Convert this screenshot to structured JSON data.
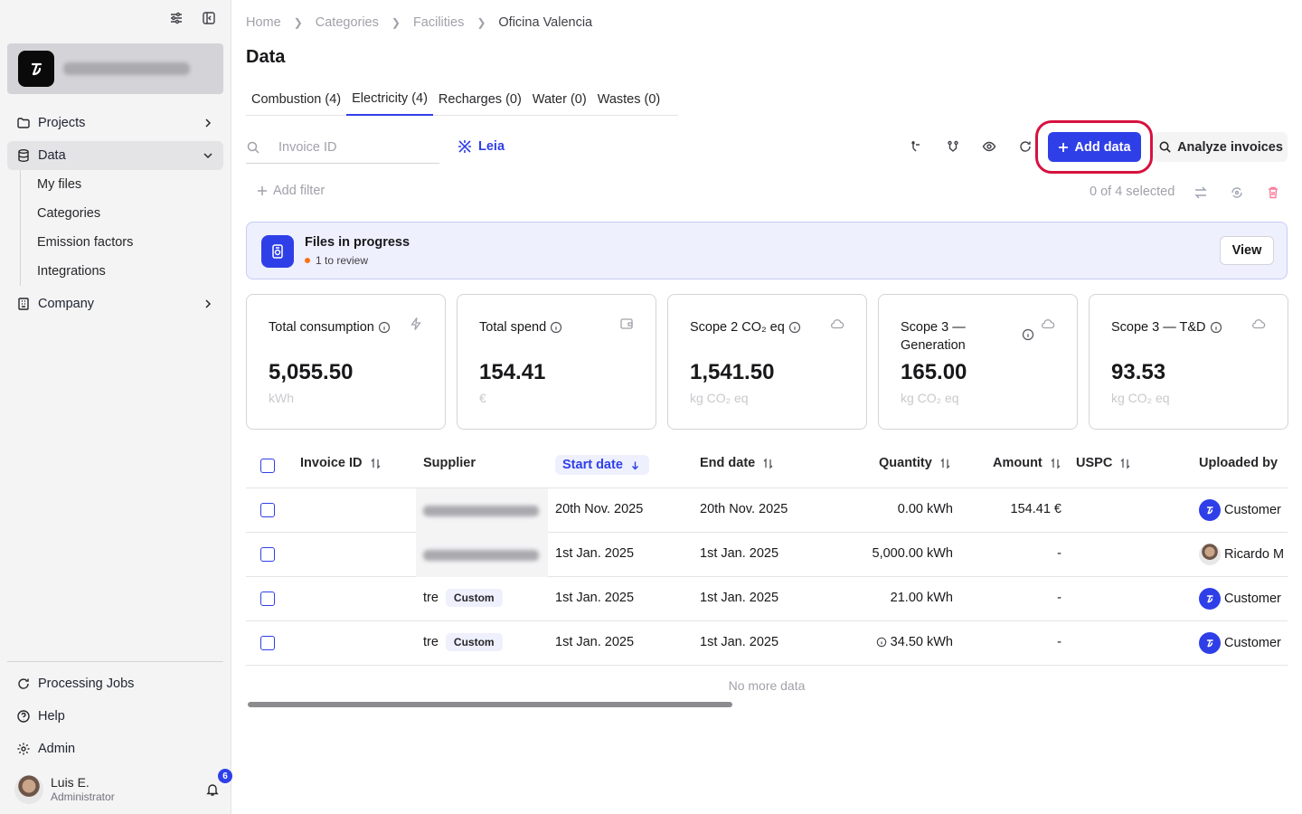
{
  "sidebar": {
    "nav": {
      "projects": "Projects",
      "data": "Data",
      "company": "Company"
    },
    "data_sub": [
      "My files",
      "Categories",
      "Emission factors",
      "Integrations"
    ],
    "bottom": {
      "processing_jobs": "Processing Jobs",
      "help": "Help",
      "admin": "Admin"
    },
    "user": {
      "name": "Luis E.",
      "role": "Administrator",
      "notifications": "6"
    }
  },
  "breadcrumb": [
    "Home",
    "Categories",
    "Facilities",
    "Oficina Valencia"
  ],
  "page_title": "Data",
  "tabs": [
    "Combustion (4)",
    "Electricity (4)",
    "Recharges (0)",
    "Water (0)",
    "Wastes (0)"
  ],
  "active_tab": "Electricity (4)",
  "search": {
    "placeholder": "Invoice ID"
  },
  "leia_label": "Leia",
  "buttons": {
    "add_data": "Add data",
    "analyze_invoices": "Analyze invoices",
    "add_filter": "Add filter"
  },
  "selection": "0 of 4 selected",
  "progress": {
    "title": "Files in progress",
    "subtitle": "1 to review",
    "view": "View"
  },
  "cards": [
    {
      "title": "Total consumption",
      "value": "5,055.50",
      "unit": "kWh",
      "icon": "bolt-icon"
    },
    {
      "title": "Total spend",
      "value": "154.41",
      "unit": "€",
      "icon": "wallet-icon"
    },
    {
      "title": "Scope 2 CO₂ eq",
      "value": "1,541.50",
      "unit": "kg CO₂ eq",
      "icon": "cloud-icon"
    },
    {
      "title": "Scope 3 — Generation",
      "value": "165.00",
      "unit": "kg CO₂ eq",
      "icon": "cloud-icon"
    },
    {
      "title": "Scope 3 — T&D",
      "value": "93.53",
      "unit": "kg CO₂ eq",
      "icon": "cloud-icon"
    }
  ],
  "table": {
    "headers": {
      "invoice_id": "Invoice ID",
      "supplier": "Supplier",
      "start_date": "Start date",
      "end_date": "End date",
      "quantity": "Quantity",
      "amount": "Amount",
      "uspc": "USPC",
      "uploaded_by": "Uploaded by"
    },
    "rows": [
      {
        "supplier": "",
        "tag": "",
        "start": "20th Nov. 2025",
        "end": "20th Nov. 2025",
        "quantity": "0.00 kWh",
        "amount": "154.41 €",
        "uploaded_by": "Customer"
      },
      {
        "supplier": "",
        "tag": "",
        "start": "1st Jan. 2025",
        "end": "1st Jan. 2025",
        "quantity": "5,000.00 kWh",
        "amount": "-",
        "uploaded_by": "Ricardo M"
      },
      {
        "supplier": "tre",
        "tag": "Custom",
        "start": "1st Jan. 2025",
        "end": "1st Jan. 2025",
        "quantity": "21.00 kWh",
        "amount": "-",
        "uploaded_by": "Customer"
      },
      {
        "supplier": "tre",
        "tag": "Custom",
        "start": "1st Jan. 2025",
        "end": "1st Jan. 2025",
        "quantity": "34.50 kWh",
        "amount": "-",
        "uploaded_by": "Customer"
      }
    ],
    "footer": "No more data"
  },
  "colors": {
    "accent": "#2f3fe8",
    "highlight": "#d6123f"
  }
}
